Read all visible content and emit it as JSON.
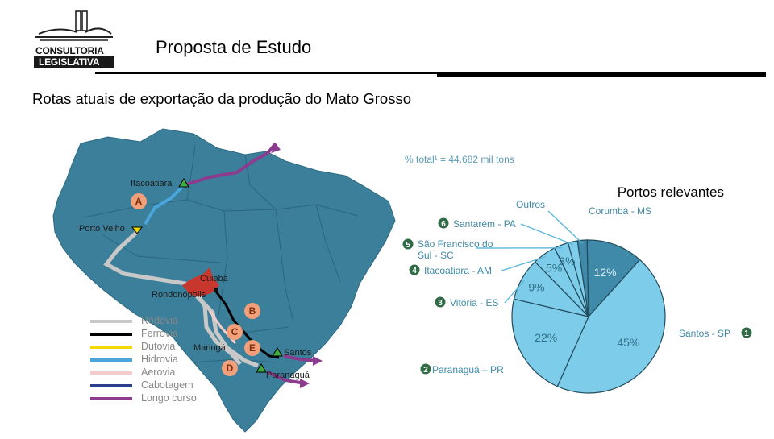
{
  "header": {
    "logo": {
      "line1": "CONSULTORIA",
      "line2": "LEGISLATIVA",
      "icon": "congress-building-icon"
    },
    "title": "Proposta de Estudo",
    "subtitle": "Rotas atuais de exportação  da produção do Mato Grosso"
  },
  "map": {
    "cities": [
      {
        "id": "itacoatiara",
        "label": "Itacoatiara"
      },
      {
        "id": "porto-velho",
        "label": "Porto Velho"
      },
      {
        "id": "cuiaba",
        "label": "Cuiabá"
      },
      {
        "id": "rondonopolis",
        "label": "Rondonópolis"
      },
      {
        "id": "maringa",
        "label": "Maringá"
      },
      {
        "id": "santos",
        "label": "Santos"
      },
      {
        "id": "paranagua",
        "label": "Paranaguá"
      }
    ],
    "route_markers": [
      "A",
      "B",
      "C",
      "D",
      "E"
    ],
    "legend": [
      {
        "label": "Rodovia",
        "color": "#c8c8c8"
      },
      {
        "label": "Ferrovia",
        "color": "#000000"
      },
      {
        "label": "Dutovia",
        "color": "#f4d800"
      },
      {
        "label": "Hidrovia",
        "color": "#4aa6db"
      },
      {
        "label": "Aerovia",
        "color": "#f3cbcb"
      },
      {
        "label": "Cabotagem",
        "color": "#2a3f8f"
      },
      {
        "label": "Longo curso",
        "color": "#8b3c8f"
      }
    ],
    "colors": {
      "land": "#3b7f9a",
      "route_red": "#c8372d"
    }
  },
  "chart_data": {
    "type": "pie",
    "title": "Portos relevantes",
    "subtitle": "% total¹ = 44.682 mil tons",
    "slices": [
      {
        "number": 1,
        "label": "Santos - SP",
        "value": 45,
        "value_label": "45%",
        "color": "#7dcdea"
      },
      {
        "number": 2,
        "label": "Paranaguá – PR",
        "value": 22,
        "value_label": "22%",
        "color": "#7dcdea"
      },
      {
        "number": 3,
        "label": "Vitória - ES",
        "value": 9,
        "value_label": "9%",
        "color": "#7dcdea"
      },
      {
        "number": 4,
        "label": "Itacoatiara - AM",
        "value": 5,
        "value_label": "5%",
        "color": "#7dcdea"
      },
      {
        "number": 5,
        "label": "São Francisco do Sul - SC",
        "value": 3,
        "value_label": "3%",
        "color": "#7dcdea"
      },
      {
        "number": 6,
        "label": "Santarém - PA",
        "value": 2,
        "value_label": "",
        "color": "#7dcdea"
      },
      {
        "number": null,
        "label": "Outros",
        "value": 2,
        "value_label": "",
        "color": "#3f8aa8"
      },
      {
        "number": null,
        "label": "Corumbá - MS",
        "value": 12,
        "value_label": "12%",
        "color": "#3f8aa8"
      }
    ]
  }
}
